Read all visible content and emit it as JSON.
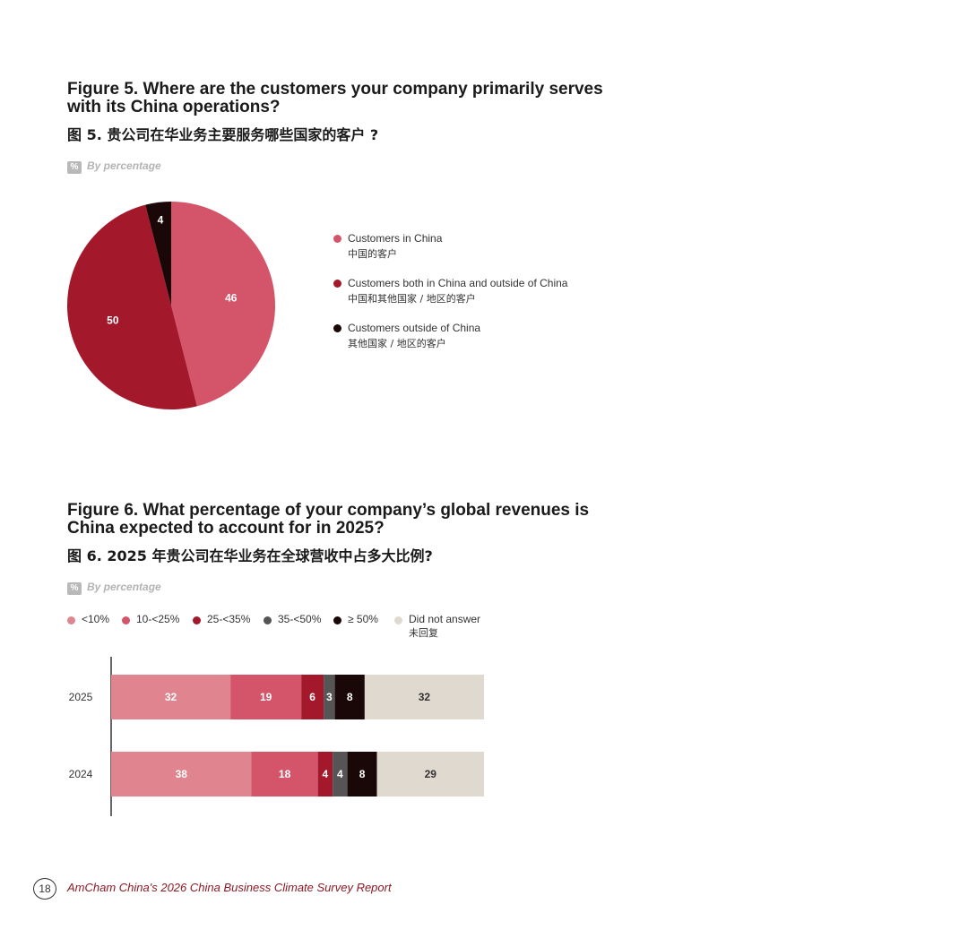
{
  "figure5": {
    "title": "Figure 5. Where are the customers your company primarily serves with its China operations?",
    "title_zh": "图 5. 贵公司在华业务主要服务哪些国家的客户 ?",
    "unit_badge": "%",
    "unit_label": "By percentage",
    "legend": [
      {
        "label": "Customers in China",
        "label_zh": "中国的客户",
        "color": "#d4546a"
      },
      {
        "label": "Customers both in China and outside of China",
        "label_zh": "中国和其他国家 / 地区的客户",
        "color": "#a3192b"
      },
      {
        "label": "Customers outside of China",
        "label_zh": "其他国家 / 地区的客户",
        "color": "#1a0707"
      }
    ]
  },
  "figure6": {
    "title": "Figure 6. What percentage of your company’s global revenues is China expected to account for in 2025?",
    "title_zh": "图 6. 2025 年贵公司在华业务在全球营收中占多大比例?",
    "unit_badge": "%",
    "unit_label": "By percentage",
    "legend": [
      {
        "label": "<10%",
        "color": "#e08590"
      },
      {
        "label": "10-<25%",
        "color": "#d4546a"
      },
      {
        "label": "25-<35%",
        "color": "#a3192b"
      },
      {
        "label": "35-<50%",
        "color": "#555555"
      },
      {
        "label": "≥ 50%",
        "color": "#1a0707"
      },
      {
        "label": "Did not answer",
        "label_zh": "未回复",
        "color": "#e0d9cf"
      }
    ]
  },
  "chart_data": [
    {
      "type": "pie",
      "categories": [
        "Customers in China",
        "Customers both in China and outside of China",
        "Customers outside of China"
      ],
      "values": [
        46,
        50,
        4
      ],
      "colors": [
        "#d4546a",
        "#a3192b",
        "#1a0707"
      ]
    },
    {
      "type": "bar",
      "orientation": "horizontal-stacked",
      "categories": [
        "2025",
        "2024"
      ],
      "series": [
        {
          "name": "<10%",
          "values": [
            32,
            38
          ],
          "color": "#e08590"
        },
        {
          "name": "10-<25%",
          "values": [
            19,
            18
          ],
          "color": "#d4546a"
        },
        {
          "name": "25-<35%",
          "values": [
            6,
            4
          ],
          "color": "#a3192b"
        },
        {
          "name": "35-<50%",
          "values": [
            3,
            4
          ],
          "color": "#555555"
        },
        {
          "name": "≥ 50%",
          "values": [
            8,
            8
          ],
          "color": "#1a0707"
        },
        {
          "name": "Did not answer",
          "values": [
            32,
            29
          ],
          "color": "#e0d9cf"
        }
      ]
    }
  ],
  "footer": {
    "page_number": "18",
    "text": "AmCham China's 2026 China Business Climate Survey Report"
  }
}
